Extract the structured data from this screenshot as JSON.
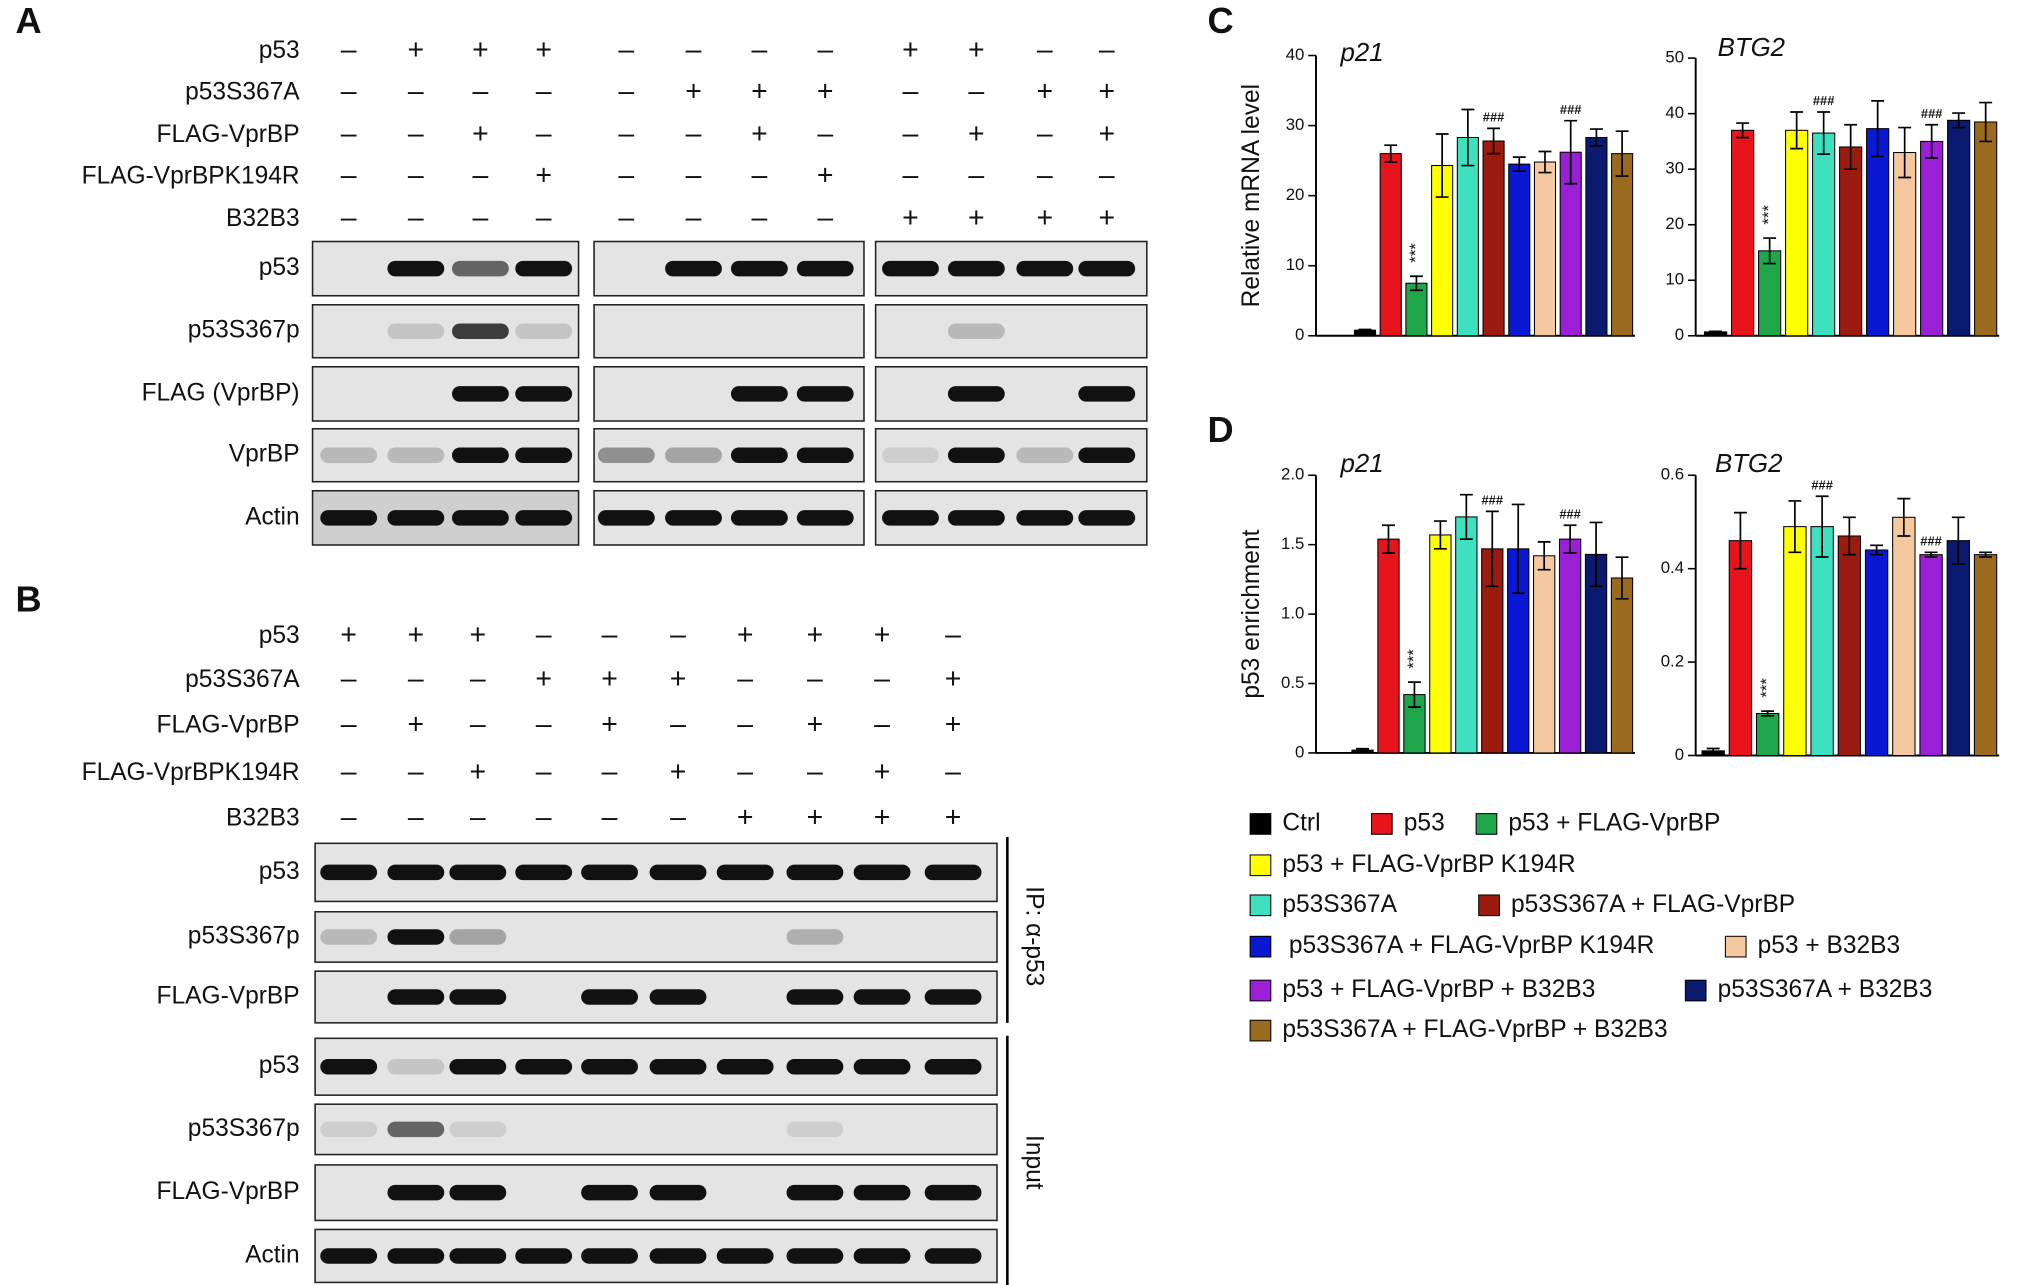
{
  "panel_A": {
    "label": "A",
    "treatments": [
      {
        "name": "p53",
        "signs": [
          "–",
          "+",
          "+",
          "+",
          "–",
          "–",
          "–",
          "–",
          "+",
          "+",
          "–",
          "–"
        ]
      },
      {
        "name": "p53S367A",
        "signs": [
          "–",
          "–",
          "–",
          "–",
          "–",
          "+",
          "+",
          "+",
          "–",
          "–",
          "+",
          "+"
        ]
      },
      {
        "name": "FLAG-VprBP",
        "signs": [
          "–",
          "–",
          "+",
          "–",
          "–",
          "–",
          "+",
          "–",
          "–",
          "+",
          "–",
          "+"
        ]
      },
      {
        "name": "FLAG-VprBPK194R",
        "signs": [
          "–",
          "–",
          "–",
          "+",
          "–",
          "–",
          "–",
          "+",
          "–",
          "–",
          "–",
          "–"
        ]
      },
      {
        "name": "B32B3",
        "signs": [
          "–",
          "–",
          "–",
          "–",
          "–",
          "–",
          "–",
          "–",
          "+",
          "+",
          "+",
          "+"
        ]
      }
    ],
    "blots": [
      "p53",
      "p53S367p",
      "FLAG (VprBP)",
      "VprBP",
      "Actin"
    ]
  },
  "panel_B": {
    "label": "B",
    "treatments": [
      {
        "name": "p53",
        "signs": [
          "+",
          "+",
          "+",
          "–",
          "–",
          "–",
          "+",
          "+",
          "+",
          "–"
        ]
      },
      {
        "name": "p53S367A",
        "signs": [
          "–",
          "–",
          "–",
          "+",
          "+",
          "+",
          "–",
          "–",
          "–",
          "+"
        ]
      },
      {
        "name": "FLAG-VprBP",
        "signs": [
          "–",
          "+",
          "–",
          "–",
          "+",
          "–",
          "–",
          "+",
          "–",
          "+"
        ]
      },
      {
        "name": "FLAG-VprBPK194R",
        "signs": [
          "–",
          "–",
          "+",
          "–",
          "–",
          "+",
          "–",
          "–",
          "+",
          "–"
        ]
      },
      {
        "name": "B32B3",
        "signs": [
          "–",
          "–",
          "–",
          "–",
          "–",
          "–",
          "+",
          "+",
          "+",
          "+"
        ]
      }
    ],
    "blots": [
      "p53",
      "p53S367p",
      "FLAG-VprBP",
      "p53",
      "p53S367p",
      "FLAG-VprBP",
      "Actin"
    ],
    "groups": [
      "IP: α-p53",
      "Input"
    ]
  },
  "panel_C": {
    "label": "C"
  },
  "panel_D": {
    "label": "D"
  },
  "legend": [
    {
      "name": "Ctrl",
      "color": "#000000"
    },
    {
      "name": "p53",
      "color": "#e8141b"
    },
    {
      "name": "p53 + FLAG-VprBP",
      "color": "#1fa64a"
    },
    {
      "name": "p53 + FLAG-VprBP K194R",
      "color": "#ffff00"
    },
    {
      "name": "p53S367A",
      "color": "#3ee0c0"
    },
    {
      "name": "p53S367A + FLAG-VprBP",
      "color": "#9b1b0f"
    },
    {
      "name": "p53S367A + FLAG-VprBP K194R",
      "color": "#0a18d6"
    },
    {
      "name": "p53 + B32B3",
      "color": "#f5c8a0"
    },
    {
      "name": "p53 + FLAG-VprBP + B32B3",
      "color": "#9b1fd6"
    },
    {
      "name": "p53S367A + B32B3",
      "color": "#0a1a6e"
    },
    {
      "name": "p53S367A + FLAG-VprBP + B32B3",
      "color": "#9a6a1e"
    }
  ],
  "chart_data": [
    {
      "type": "bar",
      "title": "p21",
      "ylabel": "Relative mRNA level",
      "values": [
        0.8,
        26,
        7.5,
        24.3,
        28.3,
        27.8,
        24.5,
        24.8,
        26.2,
        28.3,
        26
      ],
      "errors": [
        0.1,
        1.2,
        1,
        4.5,
        4,
        1.8,
        1,
        1.5,
        4.5,
        1.2,
        3.2
      ],
      "bar_labels": [
        null,
        null,
        "***",
        null,
        null,
        "###",
        null,
        null,
        "###",
        null,
        null
      ],
      "ylim": [
        0,
        40
      ],
      "yticks": [
        0,
        10,
        20,
        30,
        40
      ]
    },
    {
      "type": "bar",
      "title": "BTG2",
      "values": [
        0.7,
        37,
        15.3,
        37,
        36.5,
        34,
        37.3,
        33,
        35,
        38.8,
        38.5
      ],
      "errors": [
        0.1,
        1.3,
        2.3,
        3.3,
        3.8,
        4,
        5,
        4.5,
        3,
        1.3,
        3.5
      ],
      "bar_labels": [
        null,
        null,
        "***",
        null,
        "###",
        null,
        null,
        null,
        "###",
        null,
        null
      ],
      "ylim": [
        0,
        50
      ],
      "yticks": [
        0,
        10,
        20,
        30,
        40,
        50
      ]
    },
    {
      "type": "bar",
      "title": "p21",
      "ylabel": "p53 enrichment",
      "values": [
        0.02,
        1.54,
        0.42,
        1.57,
        1.7,
        1.47,
        1.47,
        1.42,
        1.54,
        1.43,
        1.26
      ],
      "errors": [
        0.01,
        0.1,
        0.09,
        0.1,
        0.16,
        0.27,
        0.32,
        0.1,
        0.1,
        0.23,
        0.15
      ],
      "bar_labels": [
        null,
        null,
        "***",
        null,
        null,
        "###",
        null,
        null,
        "###",
        null,
        null
      ],
      "ylim": [
        0,
        2
      ],
      "yticks": [
        0,
        0.5,
        {
          "value": 1,
          "label": "1.0"
        },
        1.5,
        {
          "value": 2,
          "label": "2.0"
        }
      ]
    },
    {
      "type": "bar",
      "title": "BTG2",
      "values": [
        0.01,
        0.46,
        0.09,
        0.49,
        0.49,
        0.47,
        0.44,
        0.51,
        0.43,
        0.46,
        0.43
      ],
      "errors": [
        0.005,
        0.06,
        0.005,
        0.055,
        0.065,
        0.04,
        0.01,
        0.04,
        0.005,
        0.05,
        0.005
      ],
      "bar_labels": [
        null,
        null,
        "***",
        null,
        "###",
        null,
        null,
        null,
        "###",
        null,
        null
      ],
      "ylim": [
        0,
        0.6
      ],
      "yticks": [
        0,
        0.2,
        0.4,
        0.6
      ]
    }
  ]
}
